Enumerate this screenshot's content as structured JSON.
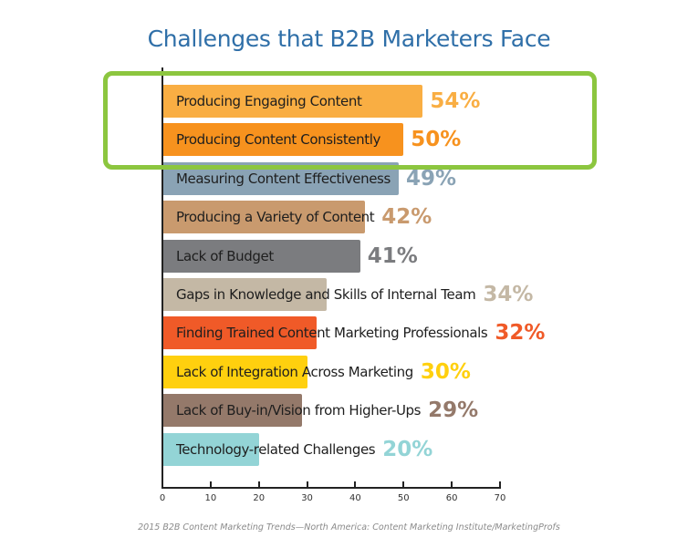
{
  "chart_data": {
    "type": "bar",
    "orientation": "horizontal",
    "title": "Challenges that B2B Marketers Face",
    "xlabel": "",
    "ylabel": "",
    "xlim": [
      0,
      70
    ],
    "xticks": [
      0,
      10,
      20,
      30,
      40,
      50,
      60,
      70
    ],
    "grid": false,
    "categories": [
      "Producing Engaging Content",
      "Producing Content Consistently",
      "Measuring Content Effectiveness",
      "Producing a Variety of Content",
      "Lack of Budget",
      "Gaps in Knowledge and Skills of Internal Team",
      "Finding Trained Content Marketing Professionals",
      "Lack of Integration Across Marketing",
      "Lack of Buy-in/Vision from Higher-Ups",
      "Technology-related Challenges"
    ],
    "values": [
      54,
      50,
      49,
      42,
      41,
      34,
      32,
      30,
      29,
      20
    ],
    "value_labels": [
      "54%",
      "50%",
      "49%",
      "42%",
      "41%",
      "34%",
      "32%",
      "30%",
      "29%",
      "20%"
    ],
    "colors": [
      "#f9ae43",
      "#f7921e",
      "#8aa3b5",
      "#c99a6e",
      "#7b7c7f",
      "#c4b8a5",
      "#f05a28",
      "#ffd00e",
      "#94796a",
      "#93d4d6"
    ],
    "value_label_colors": [
      "#f9ae43",
      "#f7921e",
      "#8aa3b5",
      "#c99a6e",
      "#7b7c7f",
      "#c4b8a5",
      "#f05a28",
      "#ffd00e",
      "#94796a",
      "#93d4d6"
    ],
    "annotations": [
      "Green hand-drawn box highlighting the top two bars (54% and 50%)"
    ],
    "source": "2015 B2B Content Marketing Trends—North America: Content Marketing Institute/MarketingProfs"
  },
  "title": "Challenges that B2B Marketers Face",
  "ticks": [
    "0",
    "10",
    "20",
    "30",
    "40",
    "50",
    "60",
    "70"
  ],
  "bars": [
    {
      "label": "Producing Engaging Content",
      "value": "54%"
    },
    {
      "label": "Producing Content Consistently",
      "value": "50%"
    },
    {
      "label": "Measuring Content Effectiveness",
      "value": "49%"
    },
    {
      "label": "Producing a Variety of Content",
      "value": "42%"
    },
    {
      "label": "Lack of Budget",
      "value": "41%"
    },
    {
      "label": "Gaps in Knowledge and Skills of Internal Team",
      "value": "34%"
    },
    {
      "label": "Finding Trained Content Marketing Professionals",
      "value": "32%"
    },
    {
      "label": "Lack of Integration Across Marketing",
      "value": "30%"
    },
    {
      "label": "Lack of Buy-in/Vision from Higher-Ups",
      "value": "29%"
    },
    {
      "label": "Technology-related Challenges",
      "value": "20%"
    }
  ],
  "source": "2015 B2B Content Marketing Trends—North America: Content Marketing Institute/MarketingProfs"
}
